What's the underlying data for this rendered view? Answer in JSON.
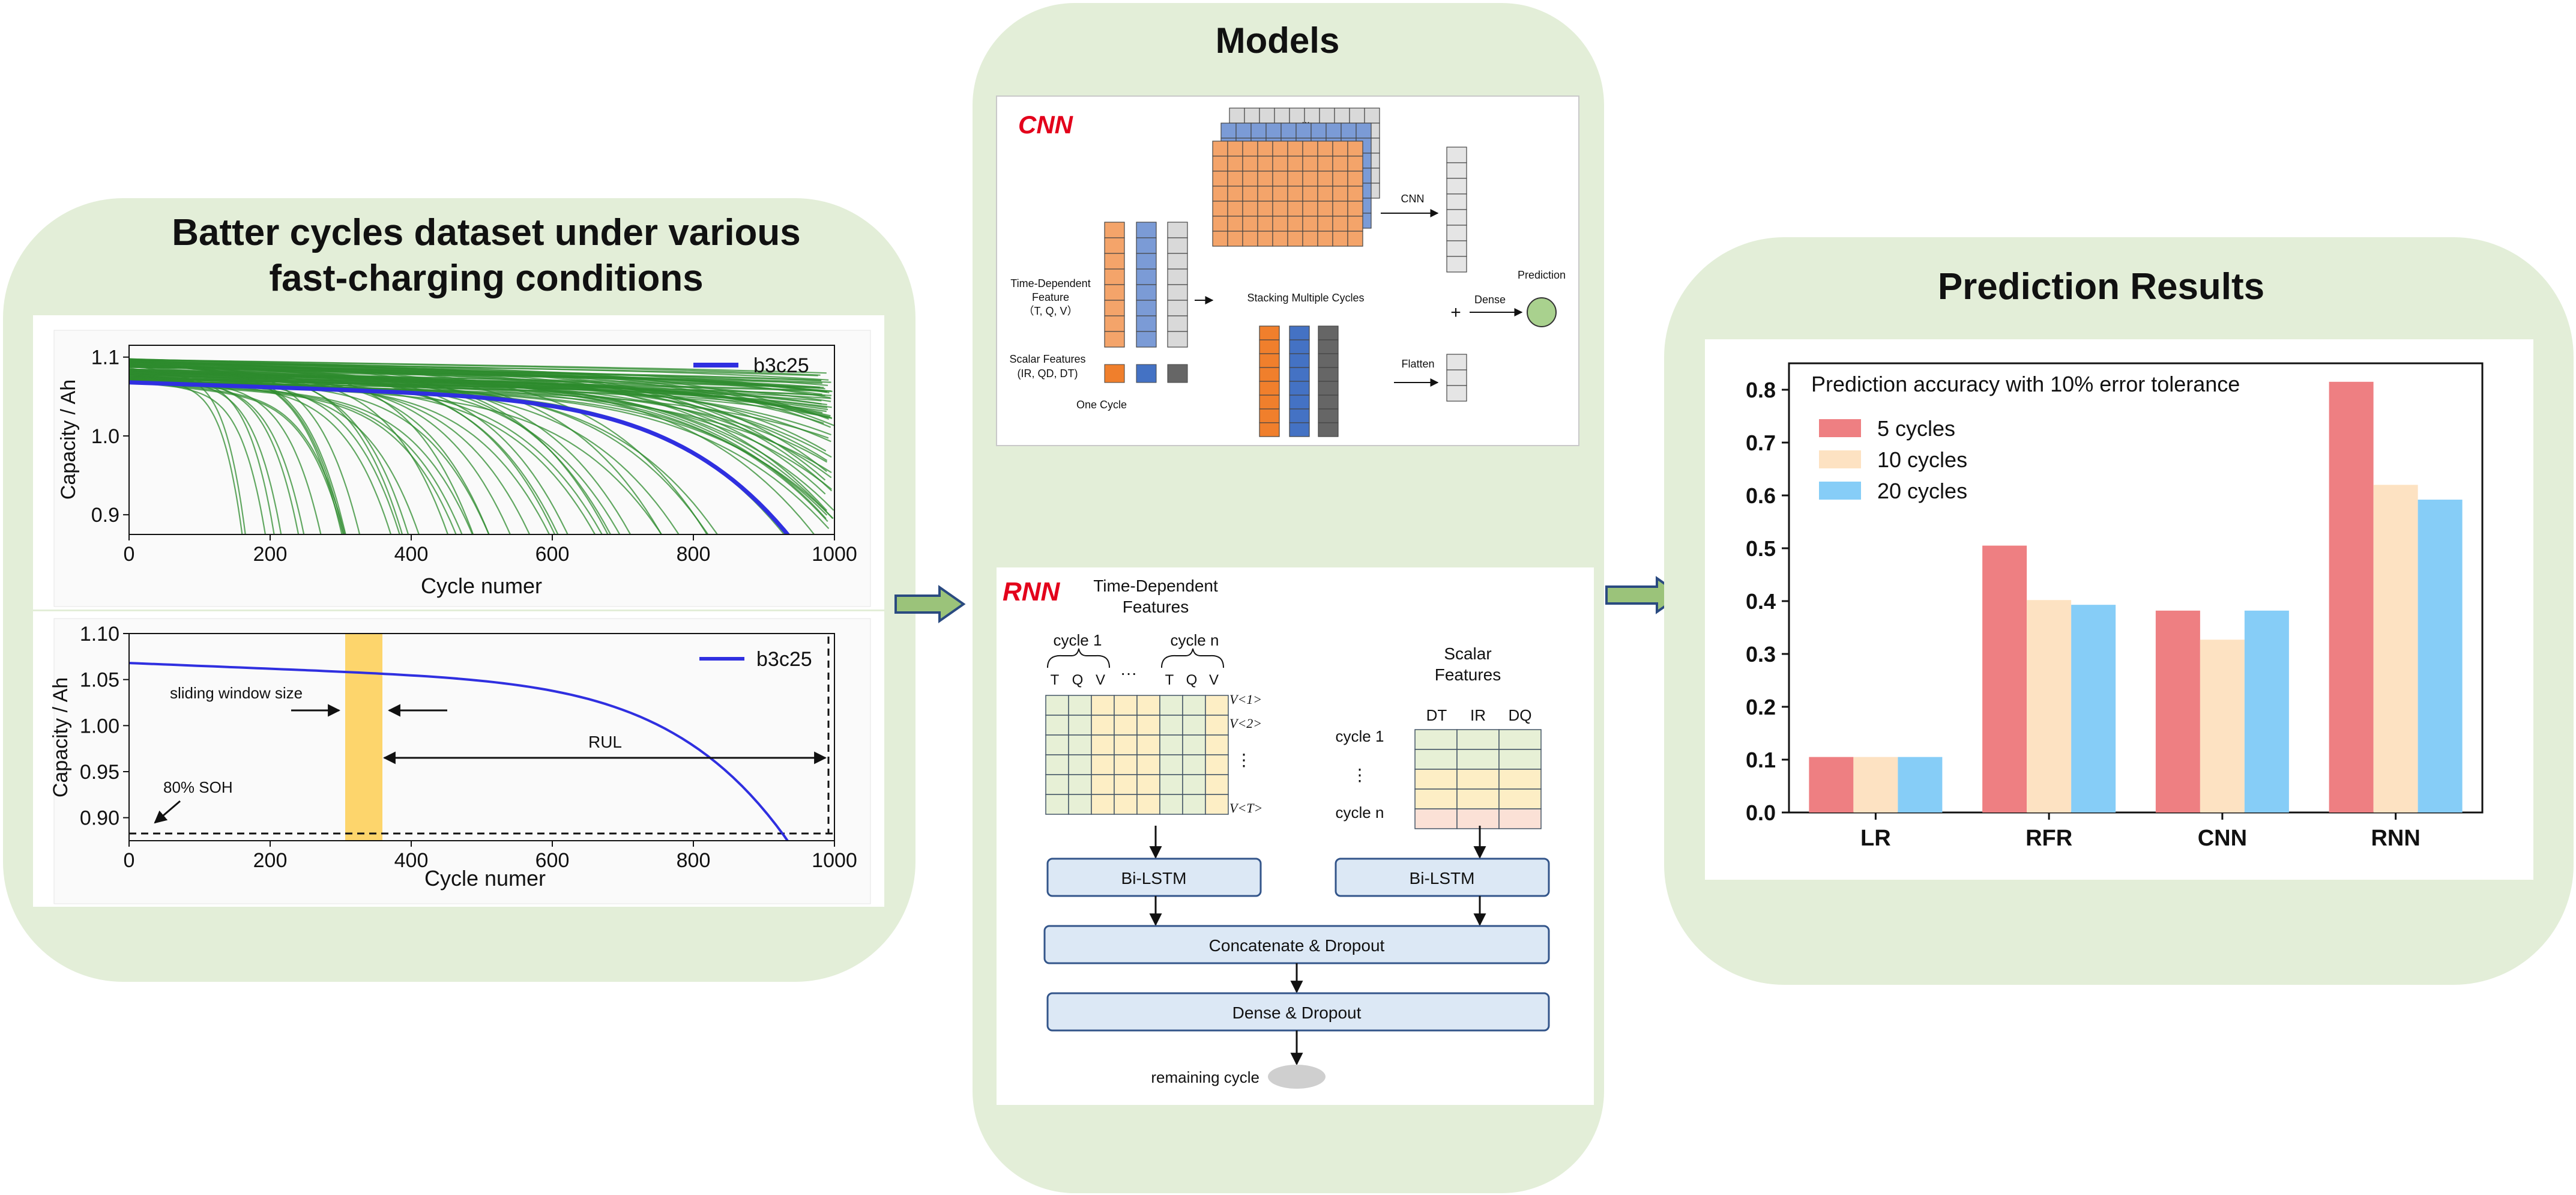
{
  "panels": {
    "left": {
      "title_line1": "Batter cycles dataset  under various",
      "title_line2": "fast-charging conditions"
    },
    "middle": {
      "title": "Models"
    },
    "right": {
      "title": "Prediction Results"
    }
  },
  "top_chart": {
    "ylabel": "Capacity / Ah",
    "xlabel": "Cycle numer",
    "legend": "b3c25",
    "xticks": [
      "0",
      "200",
      "400",
      "600",
      "800",
      "1000"
    ],
    "yticks": [
      "0.9",
      "1.0",
      "1.1"
    ]
  },
  "bottom_chart": {
    "ylabel": "Capacity / Ah",
    "xlabel": "Cycle numer",
    "legend": "b3c25",
    "xticks": [
      "0",
      "200",
      "400",
      "600",
      "800",
      "1000"
    ],
    "yticks": [
      "0.90",
      "0.95",
      "1.00",
      "1.05",
      "1.10"
    ],
    "annotations": {
      "window": "sliding window size",
      "rul": "RUL",
      "soh": "80% SOH"
    }
  },
  "cnn": {
    "title": "CNN",
    "time_feature": [
      "Time-Dependent",
      "Feature",
      "（T, Q, V）"
    ],
    "scalar_feature": [
      "Scalar Features",
      "(IR, QD, DT)"
    ],
    "one_cycle": "One Cycle",
    "stacking": "Stacking Multiple Cycles",
    "cnn_arrow": "CNN",
    "flatten": "Flatten",
    "dense": "Dense",
    "prediction": "Prediction",
    "plus": "+",
    "dots": "..."
  },
  "rnn": {
    "title": "RNN",
    "time_features": [
      "Time-Dependent",
      "Features"
    ],
    "cycle1": "cycle 1",
    "cyclen": "cycle n",
    "tqv_labels": [
      "T",
      "Q",
      "V"
    ],
    "ellipsis": "···",
    "v_labels": [
      "V<1>",
      "V<2>",
      "⋮",
      "V<T>"
    ],
    "scalar_title": [
      "Scalar",
      "Features"
    ],
    "scalar_cols": [
      "DT",
      "IR",
      "DQ"
    ],
    "scalar_rows": [
      "cycle 1",
      "⋮",
      "cycle n"
    ],
    "bilstm": "Bi-LSTM",
    "concat": "Concatenate & Dropout",
    "dense": "Dense & Dropout",
    "remaining": "remaining cycle"
  },
  "colors": {
    "panel_fill": "#e3eed8",
    "green_curves": "#2e8b2e",
    "blue_curve": "#2f2fe0",
    "window_fill": "#fdd56c",
    "orange_cell": "#f4a46a",
    "blue_cell": "#7b9bd6",
    "gray_cell": "#b9b9b9",
    "box_fill": "#dce8f5",
    "box_stroke": "#33558a",
    "arrow_fill": "#9bc37a",
    "arrow_stroke": "#2a4a80"
  },
  "chart_data": {
    "type": "bar",
    "title": "Prediction accuracy with 10% error tolerance",
    "categories": [
      "LR",
      "RFR",
      "CNN",
      "RNN"
    ],
    "series": [
      {
        "name": "5 cycles",
        "values": [
          0.105,
          0.505,
          0.382,
          0.815
        ],
        "color": "#ee7f82"
      },
      {
        "name": "10 cycles",
        "values": [
          0.105,
          0.402,
          0.327,
          0.62
        ],
        "color": "#fde2c2"
      },
      {
        "name": "20 cycles",
        "values": [
          0.105,
          0.393,
          0.382,
          0.592
        ],
        "color": "#86cdf7"
      }
    ],
    "ylim": [
      0,
      0.85
    ],
    "yticks": [
      "0.0",
      "0.1",
      "0.2",
      "0.3",
      "0.4",
      "0.5",
      "0.6",
      "0.7",
      "0.8"
    ],
    "legend_position": "top-left",
    "grid": false
  }
}
